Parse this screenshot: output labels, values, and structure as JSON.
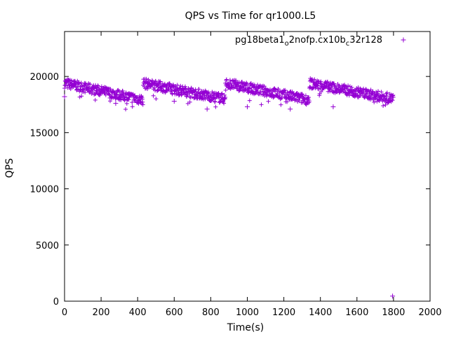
{
  "chart_data": {
    "type": "scatter",
    "title": "QPS vs Time for qr1000.L5",
    "xlabel": "Time(s)",
    "ylabel": "QPS",
    "xlim": [
      0,
      2000
    ],
    "ylim": [
      0,
      24000
    ],
    "x_ticks": [
      "0",
      "200",
      "400",
      "600",
      "800",
      "1000",
      "1200",
      "1400",
      "1600",
      "1800",
      "2000"
    ],
    "y_ticks": [
      "0",
      "5000",
      "10000",
      "15000",
      "20000"
    ],
    "grid": false,
    "legend_position": "top-right",
    "marker_color": "#9400d3",
    "series": [
      {
        "legend": {
          "base": "pg18beta1",
          "sub1": "o",
          "mid": "2nofp.cx10b",
          "sub2": "c",
          "tail": "32r128"
        },
        "segments": [
          {
            "x_start": 0,
            "x_end": 430,
            "y_start": 19400,
            "y_end": 17900
          },
          {
            "x_start": 430,
            "x_end": 880,
            "y_start": 19400,
            "y_end": 18000
          },
          {
            "x_start": 880,
            "x_end": 1340,
            "y_start": 19400,
            "y_end": 17900
          },
          {
            "x_start": 1340,
            "x_end": 1800,
            "y_start": 19400,
            "y_end": 18000
          }
        ],
        "outliers": [
          {
            "x": 0,
            "y": 18200
          },
          {
            "x": 280,
            "y": 17600
          },
          {
            "x": 600,
            "y": 17800
          },
          {
            "x": 780,
            "y": 17100
          },
          {
            "x": 1000,
            "y": 17300
          },
          {
            "x": 1235,
            "y": 17100
          },
          {
            "x": 1470,
            "y": 17300
          },
          {
            "x": 1795,
            "y": 450
          }
        ]
      }
    ]
  }
}
